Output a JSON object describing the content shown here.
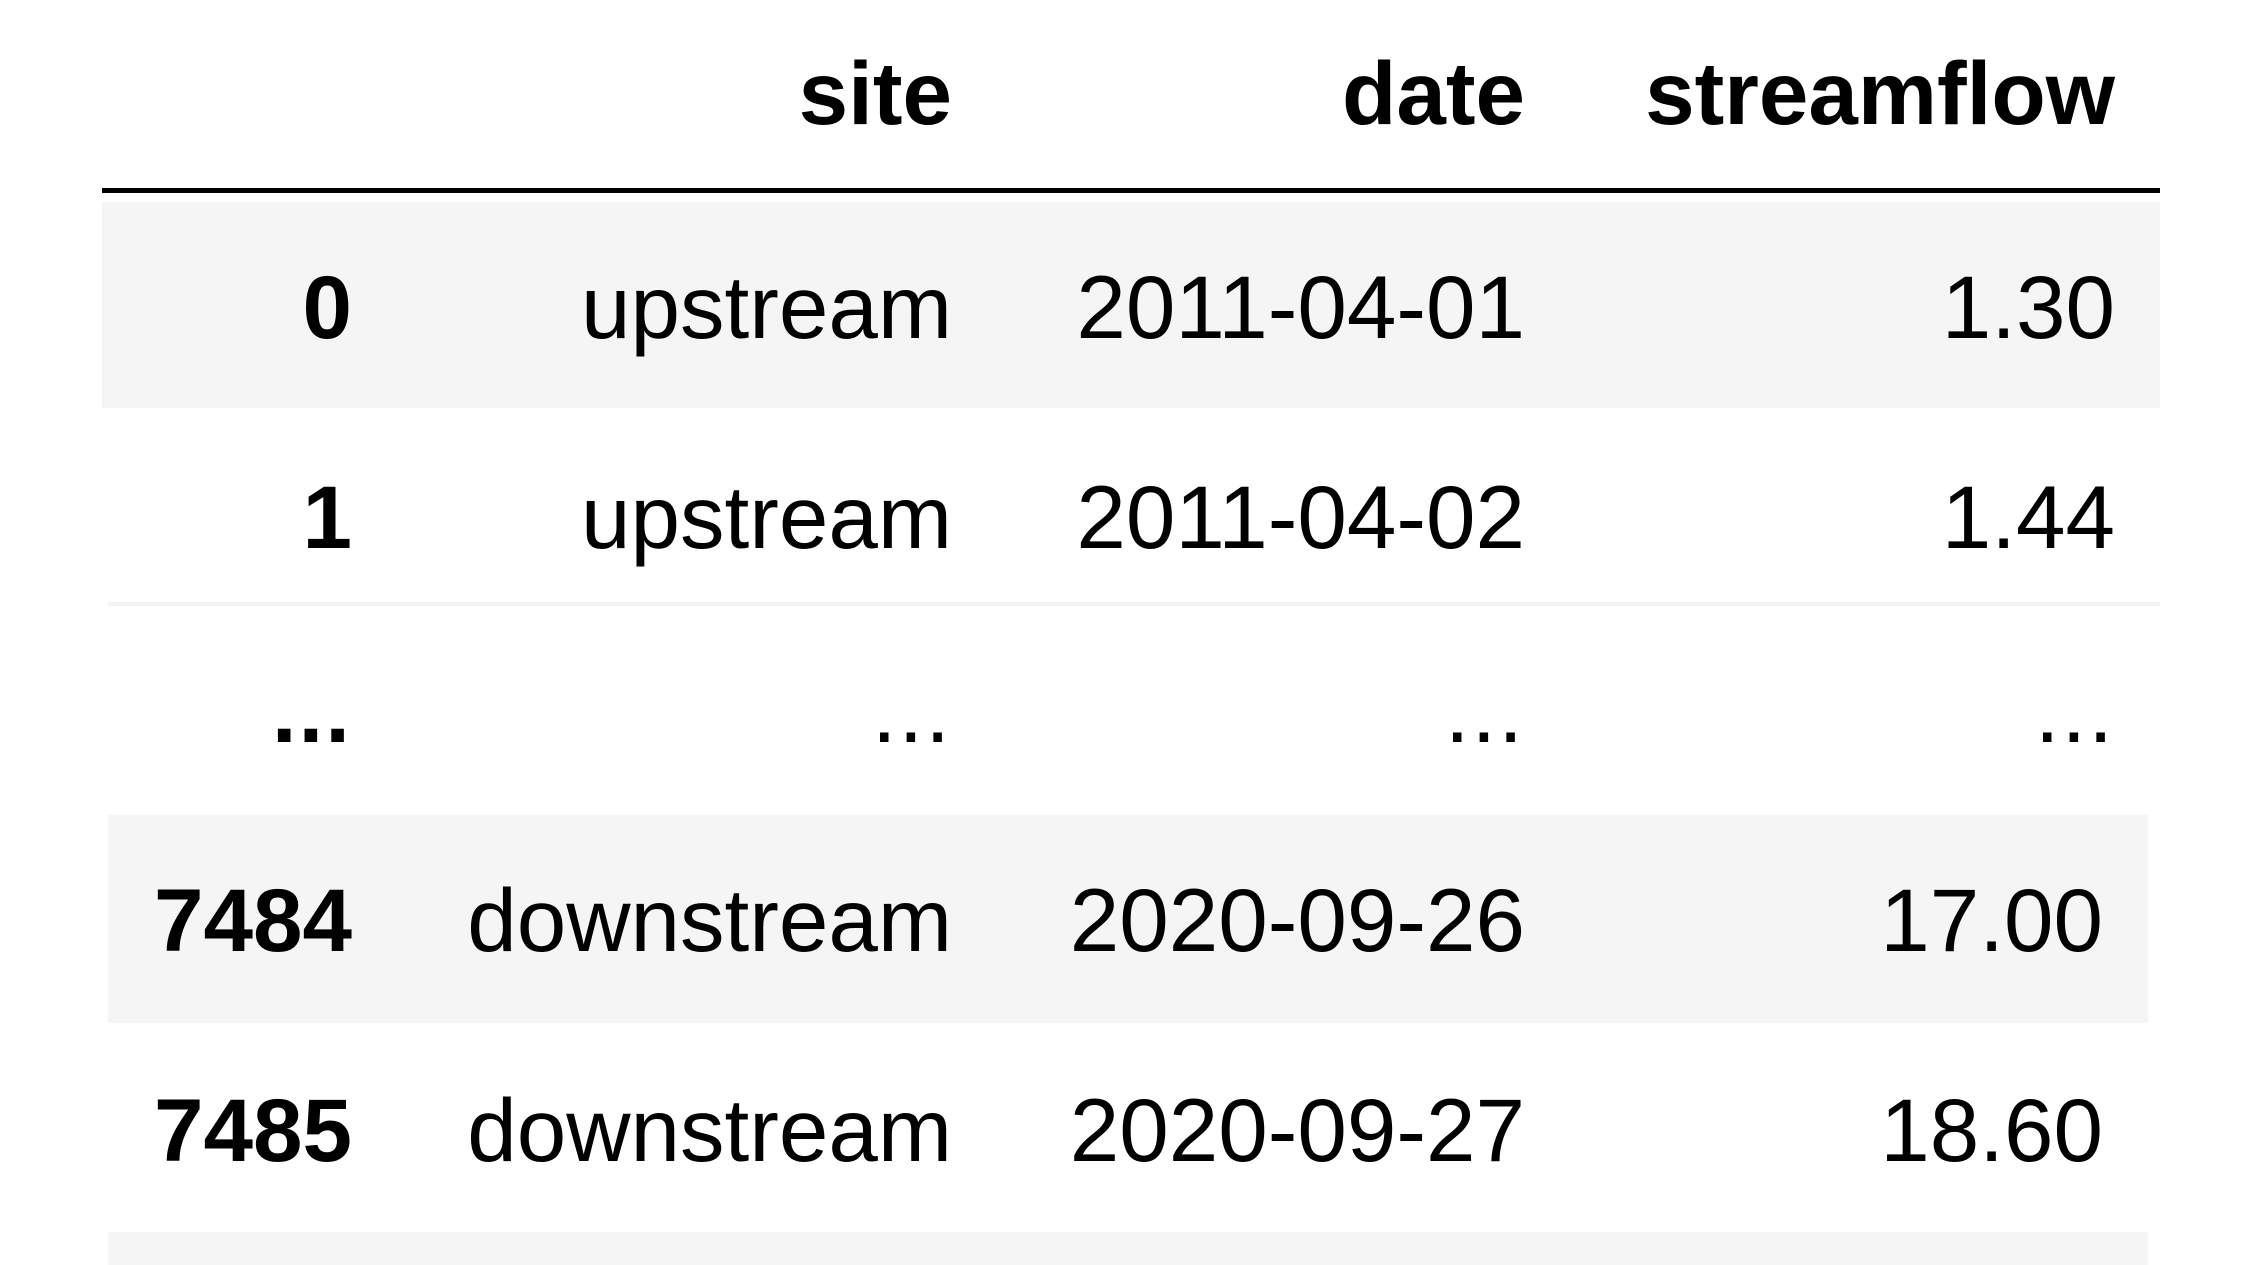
{
  "table": {
    "columns": {
      "index": "",
      "site": "site",
      "date": "date",
      "streamflow": "streamflow"
    },
    "rows": [
      {
        "index": "0",
        "site": "upstream",
        "date": "2011-04-01",
        "streamflow": "1.30"
      },
      {
        "index": "1",
        "site": "upstream",
        "date": "2011-04-02",
        "streamflow": "1.44"
      },
      {
        "index": "...",
        "site": "...",
        "date": "...",
        "streamflow": "..."
      },
      {
        "index": "7484",
        "site": "downstream",
        "date": "2020-09-26",
        "streamflow": "17.00"
      },
      {
        "index": "7485",
        "site": "downstream",
        "date": "2020-09-27",
        "streamflow": "18.60"
      }
    ]
  },
  "colors": {
    "stripe": "#f5f5f5",
    "text": "#000000",
    "rule": "#000000"
  }
}
